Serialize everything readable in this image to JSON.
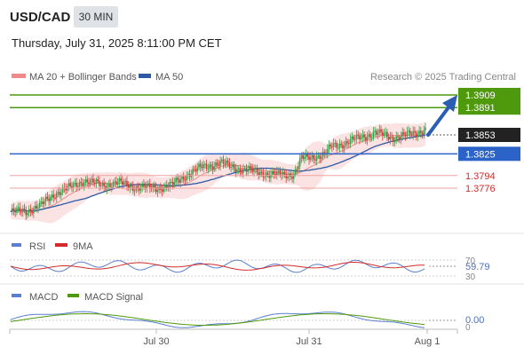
{
  "header": {
    "symbol": "USD/CAD",
    "timeframe": "30 MIN",
    "datetime": "Thursday, July 31, 2025 8:11:00 PM CET"
  },
  "legend": {
    "ma20": "MA 20 + Bollinger Bands",
    "ma50": "MA 50",
    "credit": "Research © 2025 Trading Central",
    "colors": {
      "ma20": "#f08a8a",
      "ma50": "#2e5aa8"
    }
  },
  "chart_data": [
    {
      "type": "candlestick",
      "panel": "price",
      "x_ticks": [
        "Jul 30",
        "Jul 31",
        "Aug 1"
      ],
      "current_price": "1.3853",
      "levels": [
        {
          "label": "1.3909",
          "kind": "resistance",
          "color": "#4e9a0c"
        },
        {
          "label": "1.3891",
          "kind": "resistance",
          "color": "#4e9a0c"
        },
        {
          "label": "1.3825",
          "kind": "pivot",
          "color": "#2b63c9"
        },
        {
          "label": "1.3794",
          "kind": "support",
          "color": "#d42a2a"
        },
        {
          "label": "1.3776",
          "kind": "support",
          "color": "#d42a2a"
        }
      ],
      "series": [
        {
          "name": "MA 20 + Bollinger Bands",
          "color": "#f08a8a"
        },
        {
          "name": "MA 50",
          "color": "#2e5aa8"
        }
      ],
      "arrow": "up"
    },
    {
      "type": "line",
      "panel": "rsi",
      "series": [
        {
          "name": "RSI",
          "color": "#5a7fd0"
        },
        {
          "name": "9MA",
          "color": "#d42a2a"
        }
      ],
      "tick_labels": [
        "70",
        "30"
      ],
      "value_label": "59.79"
    },
    {
      "type": "line",
      "panel": "macd",
      "series": [
        {
          "name": "MACD",
          "color": "#5a7fd0"
        },
        {
          "name": "MACD Signal",
          "color": "#4e9a0c"
        }
      ],
      "tick_labels": [
        "0"
      ],
      "value_label": "0.00"
    }
  ]
}
